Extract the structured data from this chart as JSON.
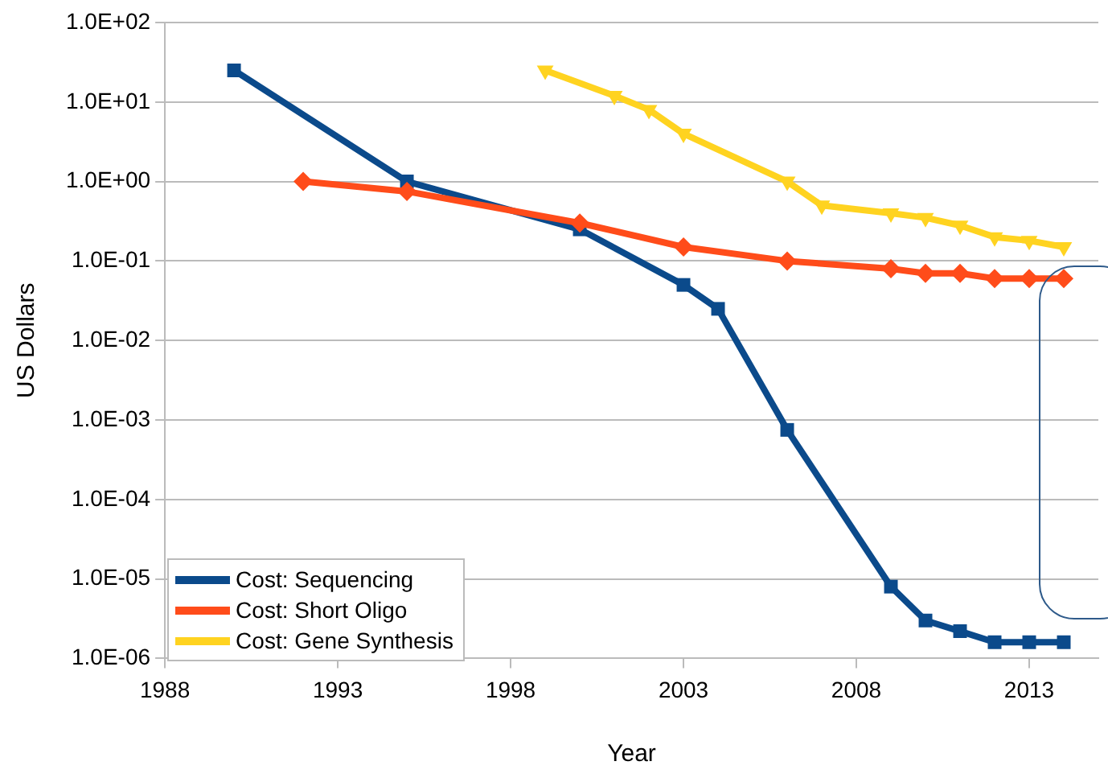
{
  "chart_data": {
    "type": "line",
    "xlabel": "Year",
    "ylabel": "US Dollars",
    "xlim": [
      1988,
      2015
    ],
    "xticks": [
      1988,
      1993,
      1998,
      2003,
      2008,
      2013
    ],
    "ylim": [
      1e-06,
      100
    ],
    "log": "y",
    "yticks": [
      {
        "value": 100,
        "label": "1.0E+02"
      },
      {
        "value": 10,
        "label": "1.0E+01"
      },
      {
        "value": 1,
        "label": "1.0E+00"
      },
      {
        "value": 0.1,
        "label": "1.0E-01"
      },
      {
        "value": 0.01,
        "label": "1.0E-02"
      },
      {
        "value": 0.001,
        "label": "1.0E-03"
      },
      {
        "value": 0.0001,
        "label": "1.0E-04"
      },
      {
        "value": 1e-05,
        "label": "1.0E-05"
      },
      {
        "value": 1e-06,
        "label": "1.0E-06"
      }
    ],
    "grid": "y",
    "legend": "bottom left",
    "series": [
      {
        "name": "Cost: Sequencing",
        "color": "#0b4a8b",
        "marker": "square",
        "x": [
          1990,
          1995,
          2000,
          2003,
          2004,
          2006,
          2009,
          2010,
          2011,
          2012,
          2013,
          2014
        ],
        "values": [
          25,
          1,
          0.25,
          0.05,
          0.025,
          0.00075,
          8e-06,
          3e-06,
          2.2e-06,
          1.6e-06,
          1.6e-06,
          1.6e-06
        ]
      },
      {
        "name": "Cost: Short Oligo",
        "color": "#ff4c1a",
        "marker": "diamond",
        "x": [
          1992,
          1995,
          2000,
          2003,
          2006,
          2009,
          2010,
          2011,
          2012,
          2013,
          2014
        ],
        "values": [
          1,
          0.75,
          0.3,
          0.15,
          0.1,
          0.08,
          0.07,
          0.07,
          0.06,
          0.06,
          0.06
        ]
      },
      {
        "name": "Cost: Gene Synthesis",
        "color": "#ffd320",
        "marker": "triangle",
        "x": [
          1999,
          2001,
          2002,
          2003,
          2006,
          2007,
          2009,
          2010,
          2011,
          2012,
          2013,
          2014
        ],
        "values": [
          25,
          12,
          8,
          4,
          1,
          0.5,
          0.4,
          0.35,
          0.28,
          0.2,
          0.18,
          0.15
        ]
      }
    ]
  }
}
